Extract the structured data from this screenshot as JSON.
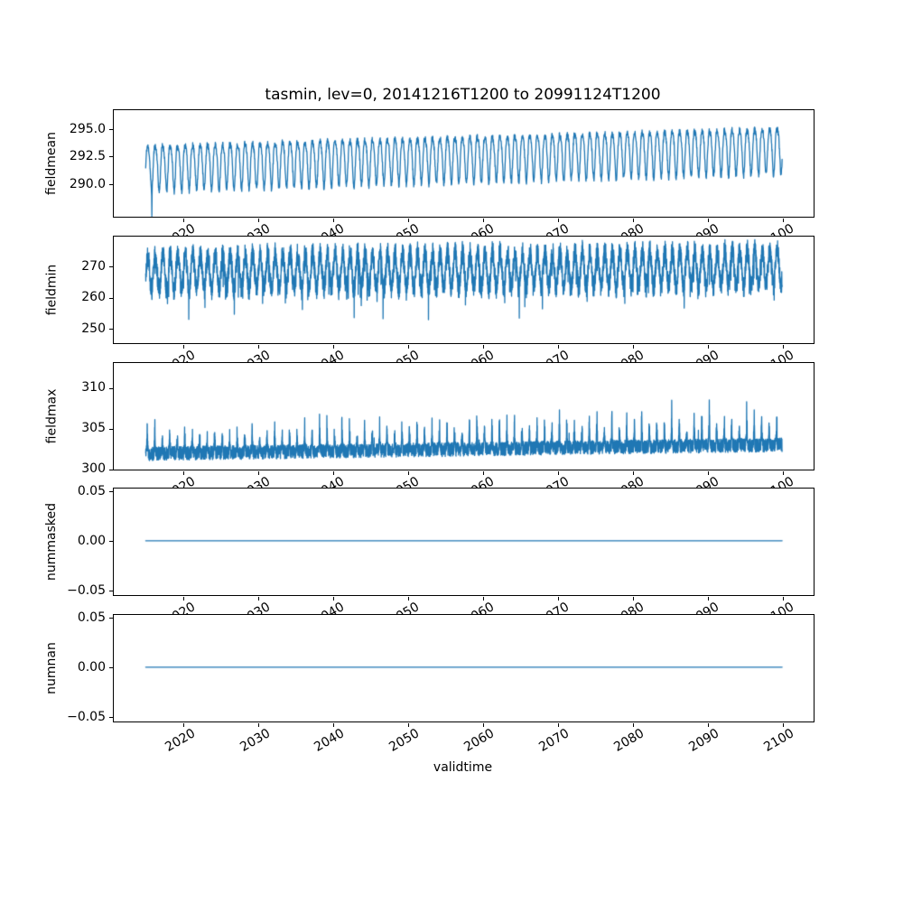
{
  "figure": {
    "title": "tasmin, lev=0, 20141216T1200 to 20991124T1200",
    "xlabel": "validtime",
    "line_color": "#1f77b4",
    "background_color": "#ffffff",
    "axes_edge_color": "#000000",
    "text_color": "#000000"
  },
  "x_axis": {
    "xlim": [
      2010.7,
      2104.1
    ],
    "ticks": [
      2020,
      2030,
      2040,
      2050,
      2060,
      2070,
      2080,
      2090,
      2100
    ],
    "tick_labels": [
      "2020",
      "2030",
      "2040",
      "2050",
      "2060",
      "2070",
      "2080",
      "2090",
      "2100"
    ],
    "tick_rotation_deg": 30,
    "data_start": 2014.96,
    "data_end": 2099.9
  },
  "chart_data": [
    {
      "type": "line",
      "ylabel": "fieldmean",
      "yticks": [
        290.0,
        292.5,
        295.0
      ],
      "ytick_labels": [
        "290.0",
        "292.5",
        "295.0"
      ],
      "ylim": [
        287.0,
        296.75
      ],
      "approx_value_range": [
        287.8,
        295.9
      ],
      "shape": "annual oscillation, amplitude ~2, rising trend ~+1.6 over 2015-2100, one deep dip to ~287.9 near 2016",
      "series": {
        "name": "fieldmean",
        "synth": {
          "kind": "seasonal_mean",
          "seed": 11,
          "n": 3100,
          "base": 291.7,
          "trend": 1.6,
          "amp": 2.05,
          "wobble": 0.38,
          "jitter": 0.3,
          "dip_t": 2015.78,
          "dip_amp": 2.2,
          "dip_w": 0.02
        }
      }
    },
    {
      "type": "line",
      "ylabel": "fieldmin",
      "yticks": [
        250,
        260,
        270
      ],
      "ytick_labels": [
        "250",
        "260",
        "270"
      ],
      "ylim": [
        245.4,
        279.6
      ],
      "approx_value_range": [
        247.0,
        278.5
      ],
      "shape": "dense high-frequency band between ~258 and ~278 with annual envelope and occasional deep downward spikes to ~247-252",
      "series": {
        "name": "fieldmin",
        "synth": {
          "kind": "seasonal_band",
          "seed": 22,
          "n": 5200,
          "base": 268.2,
          "trend": 1.3,
          "amp": 5.6,
          "noise": 3.7,
          "spike_thr": 0.974,
          "spike_scale": 420
        }
      }
    },
    {
      "type": "line",
      "ylabel": "fieldmax",
      "yticks": [
        300,
        305,
        310
      ],
      "ytick_labels": [
        "300",
        "305",
        "310"
      ],
      "ylim": [
        299.95,
        313.1
      ],
      "approx_value_range": [
        300.8,
        312.5
      ],
      "shape": "noisy baseline ~301-304 slowly rising, annual upward spikes reaching 305-309 early and up to ~312 late",
      "series": {
        "name": "fieldmax",
        "synth": {
          "kind": "spiky_max",
          "seed": 33,
          "n": 5200,
          "base": 301.9,
          "trend": 1.1,
          "noise": 0.85,
          "spike": 5.6,
          "rare": 1.4
        }
      }
    },
    {
      "type": "line",
      "ylabel": "nummasked",
      "yticks": [
        -0.05,
        0.0,
        0.05
      ],
      "ytick_labels": [
        "−0.05",
        "0.00",
        "0.05"
      ],
      "ylim": [
        -0.0548,
        0.0527
      ],
      "approx_value_range": [
        0,
        0
      ],
      "shape": "constant zero line",
      "series": {
        "name": "nummasked",
        "synth": {
          "kind": "constant",
          "seed": 4,
          "n": 600,
          "value": 0
        }
      }
    },
    {
      "type": "line",
      "ylabel": "numnan",
      "yticks": [
        -0.05,
        0.0,
        0.05
      ],
      "ytick_labels": [
        "−0.05",
        "0.00",
        "0.05"
      ],
      "ylim": [
        -0.0548,
        0.0527
      ],
      "approx_value_range": [
        0,
        0
      ],
      "shape": "constant zero line",
      "series": {
        "name": "numnan",
        "synth": {
          "kind": "constant",
          "seed": 5,
          "n": 600,
          "value": 0
        }
      }
    }
  ]
}
